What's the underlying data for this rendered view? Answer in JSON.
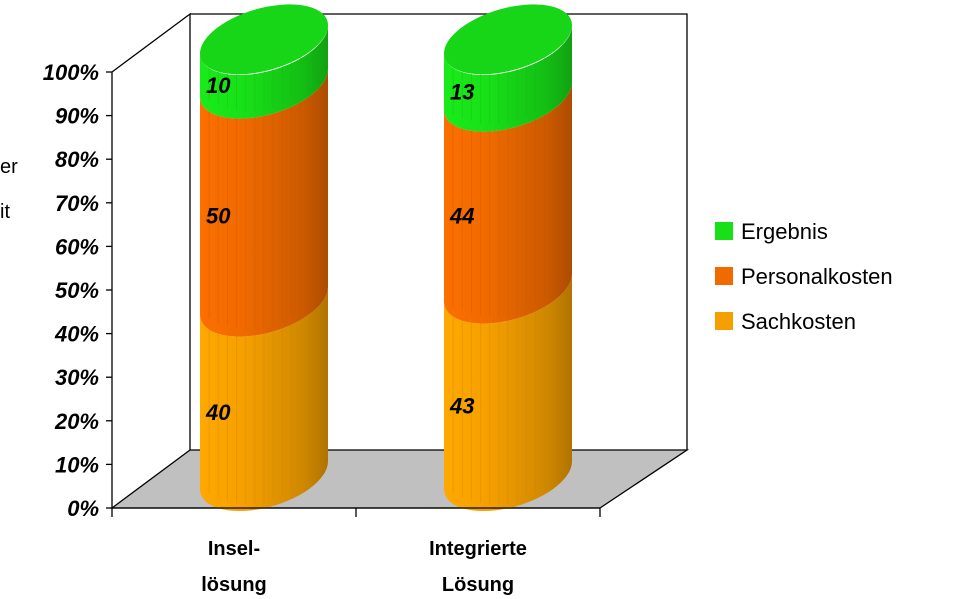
{
  "chart_data": {
    "type": "bar",
    "stacked": "percent",
    "style": "3d-cylinder",
    "categories": [
      "Insel-\nlösung",
      "Integrierte\nLösung"
    ],
    "series": [
      {
        "name": "Sachkosten",
        "values": [
          40,
          43
        ],
        "color": "#F5A000"
      },
      {
        "name": "Personalkosten",
        "values": [
          50,
          44
        ],
        "color": "#F06A00"
      },
      {
        "name": "Ergebnis",
        "values": [
          10,
          13
        ],
        "color": "#18E018"
      }
    ],
    "ylim": [
      0,
      100
    ],
    "y_ticks": [
      "0%",
      "10%",
      "20%",
      "30%",
      "40%",
      "50%",
      "60%",
      "70%",
      "80%",
      "90%",
      "100%"
    ],
    "ylabel_fragments": [
      "er",
      "it"
    ],
    "legend": {
      "position": "right",
      "entries": [
        "Ergebnis",
        "Personalkosten",
        "Sachkosten"
      ]
    },
    "floor_color": "#C0C0C0",
    "grid": false
  }
}
